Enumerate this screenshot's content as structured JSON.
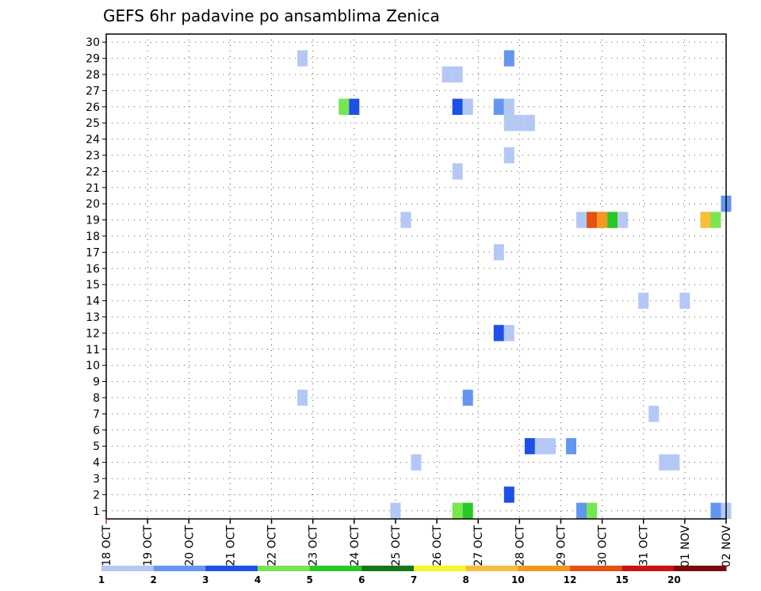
{
  "chart_data": {
    "type": "heatmap",
    "title": "GEFS 6hr padavine po ansamblima Zenica",
    "xlabel": "",
    "ylabel": "",
    "x_tick_labels": [
      "18 OCT",
      "19 OCT",
      "20 OCT",
      "21 OCT",
      "22 OCT",
      "23 OCT",
      "24 OCT",
      "25 OCT",
      "26 OCT",
      "27 OCT",
      "28 OCT",
      "29 OCT",
      "30 OCT",
      "31 OCT",
      "01 NOV",
      "02 NOV"
    ],
    "y_tick_labels": [
      "1",
      "2",
      "3",
      "4",
      "5",
      "6",
      "7",
      "8",
      "9",
      "10",
      "11",
      "12",
      "13",
      "14",
      "15",
      "16",
      "17",
      "18",
      "19",
      "20",
      "21",
      "22",
      "23",
      "24",
      "25",
      "26",
      "27",
      "28",
      "29",
      "30"
    ],
    "x_unit": "6-hour step from 18 OCT 00Z",
    "x_range": [
      0,
      60
    ],
    "y_range": [
      0.5,
      30.5
    ],
    "grid": true,
    "legend": {
      "position": "bottom",
      "tick_labels": [
        "1",
        "2",
        "3",
        "4",
        "5",
        "6",
        "7",
        "8",
        "10",
        "12",
        "15",
        "20"
      ],
      "colors": [
        "#b4c8f5",
        "#6496f0",
        "#1e50e6",
        "#78e650",
        "#28c828",
        "#147814",
        "#f5f528",
        "#f5be3c",
        "#f5961e",
        "#e65014",
        "#c81414",
        "#780a0a"
      ]
    },
    "cells": [
      {
        "member": 29,
        "step": 19,
        "color": "#b4c8f5"
      },
      {
        "member": 29,
        "step": 39,
        "color": "#6496f0"
      },
      {
        "member": 28,
        "step": 33,
        "color": "#b4c8f5"
      },
      {
        "member": 28,
        "step": 34,
        "color": "#b4c8f5"
      },
      {
        "member": 26,
        "step": 23,
        "color": "#78e650"
      },
      {
        "member": 26,
        "step": 24,
        "color": "#1e50e6"
      },
      {
        "member": 26,
        "step": 34,
        "color": "#1e50e6"
      },
      {
        "member": 26,
        "step": 35,
        "color": "#b4c8f5"
      },
      {
        "member": 26,
        "step": 38,
        "color": "#6496f0"
      },
      {
        "member": 26,
        "step": 39,
        "color": "#b4c8f5"
      },
      {
        "member": 25,
        "step": 39,
        "color": "#b4c8f5"
      },
      {
        "member": 25,
        "step": 40,
        "color": "#b4c8f5"
      },
      {
        "member": 25,
        "step": 41,
        "color": "#b4c8f5"
      },
      {
        "member": 23,
        "step": 39,
        "color": "#b4c8f5"
      },
      {
        "member": 22,
        "step": 34,
        "color": "#b4c8f5"
      },
      {
        "member": 20,
        "step": 60,
        "color": "#6496f0"
      },
      {
        "member": 19,
        "step": 29,
        "color": "#b4c8f5"
      },
      {
        "member": 19,
        "step": 46,
        "color": "#b4c8f5"
      },
      {
        "member": 19,
        "step": 47,
        "color": "#e65014"
      },
      {
        "member": 19,
        "step": 48,
        "color": "#f5961e"
      },
      {
        "member": 19,
        "step": 49,
        "color": "#28c828"
      },
      {
        "member": 19,
        "step": 50,
        "color": "#b4c8f5"
      },
      {
        "member": 19,
        "step": 58,
        "color": "#f5be3c"
      },
      {
        "member": 19,
        "step": 59,
        "color": "#78e650"
      },
      {
        "member": 17,
        "step": 38,
        "color": "#b4c8f5"
      },
      {
        "member": 14,
        "step": 52,
        "color": "#b4c8f5"
      },
      {
        "member": 14,
        "step": 56,
        "color": "#b4c8f5"
      },
      {
        "member": 12,
        "step": 38,
        "color": "#1e50e6"
      },
      {
        "member": 12,
        "step": 39,
        "color": "#b4c8f5"
      },
      {
        "member": 8,
        "step": 19,
        "color": "#b4c8f5"
      },
      {
        "member": 8,
        "step": 35,
        "color": "#6496f0"
      },
      {
        "member": 7,
        "step": 53,
        "color": "#b4c8f5"
      },
      {
        "member": 5,
        "step": 41,
        "color": "#1e50e6"
      },
      {
        "member": 5,
        "step": 42,
        "color": "#b4c8f5"
      },
      {
        "member": 5,
        "step": 43,
        "color": "#b4c8f5"
      },
      {
        "member": 5,
        "step": 45,
        "color": "#6496f0"
      },
      {
        "member": 4,
        "step": 30,
        "color": "#b4c8f5"
      },
      {
        "member": 4,
        "step": 54,
        "color": "#b4c8f5"
      },
      {
        "member": 4,
        "step": 55,
        "color": "#b4c8f5"
      },
      {
        "member": 2,
        "step": 39,
        "color": "#1e50e6"
      },
      {
        "member": 1,
        "step": 28,
        "color": "#b4c8f5"
      },
      {
        "member": 1,
        "step": 34,
        "color": "#78e650"
      },
      {
        "member": 1,
        "step": 35,
        "color": "#28c828"
      },
      {
        "member": 1,
        "step": 46,
        "color": "#6496f0"
      },
      {
        "member": 1,
        "step": 47,
        "color": "#78e650"
      },
      {
        "member": 1,
        "step": 59,
        "color": "#6496f0"
      },
      {
        "member": 1,
        "step": 60,
        "color": "#b4c8f5"
      }
    ]
  }
}
